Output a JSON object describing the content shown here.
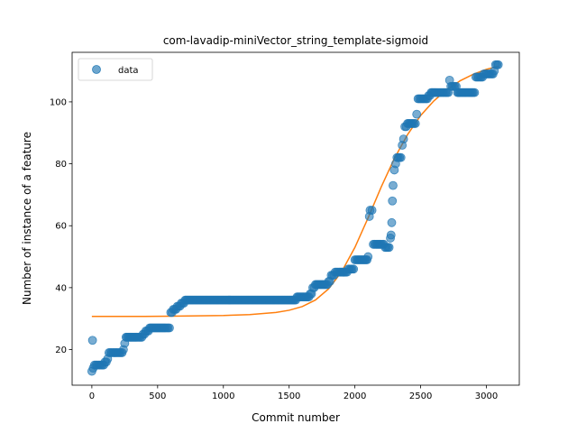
{
  "chart_data": {
    "type": "scatter",
    "title": "com-lavadip-miniVector_string_template-sigmoid",
    "xlabel": "Commit number",
    "ylabel": "Number of instance of a feature",
    "xlim": [
      -150,
      3250
    ],
    "ylim": [
      8.5,
      116
    ],
    "x_ticks": [
      0,
      500,
      1000,
      1500,
      2000,
      2500,
      3000
    ],
    "y_ticks": [
      20,
      40,
      60,
      80,
      100
    ],
    "grid": false,
    "legend": {
      "placement": "top-left",
      "entries": [
        "data"
      ]
    },
    "colors": {
      "data": "#1f77b4",
      "fit": "#ff7f0e"
    },
    "series": [
      {
        "name": "data",
        "type": "scatter",
        "points": [
          [
            0,
            13
          ],
          [
            5,
            23
          ],
          [
            10,
            14
          ],
          [
            20,
            15
          ],
          [
            40,
            15
          ],
          [
            60,
            15
          ],
          [
            80,
            15
          ],
          [
            100,
            16
          ],
          [
            120,
            17
          ],
          [
            130,
            19
          ],
          [
            160,
            19
          ],
          [
            190,
            19
          ],
          [
            220,
            19
          ],
          [
            240,
            20
          ],
          [
            250,
            22
          ],
          [
            260,
            24
          ],
          [
            300,
            24
          ],
          [
            340,
            24
          ],
          [
            370,
            24
          ],
          [
            390,
            25
          ],
          [
            410,
            26
          ],
          [
            440,
            27
          ],
          [
            480,
            27
          ],
          [
            520,
            27
          ],
          [
            560,
            27
          ],
          [
            590,
            27
          ],
          [
            600,
            32
          ],
          [
            620,
            33
          ],
          [
            650,
            34
          ],
          [
            680,
            35
          ],
          [
            710,
            36
          ],
          [
            750,
            36
          ],
          [
            800,
            36
          ],
          [
            850,
            36
          ],
          [
            900,
            36
          ],
          [
            950,
            36
          ],
          [
            1000,
            36
          ],
          [
            1050,
            36
          ],
          [
            1100,
            36
          ],
          [
            1150,
            36
          ],
          [
            1200,
            36
          ],
          [
            1250,
            36
          ],
          [
            1300,
            36
          ],
          [
            1350,
            36
          ],
          [
            1400,
            36
          ],
          [
            1450,
            36
          ],
          [
            1500,
            36
          ],
          [
            1540,
            36
          ],
          [
            1560,
            37
          ],
          [
            1600,
            37
          ],
          [
            1640,
            37
          ],
          [
            1660,
            38
          ],
          [
            1680,
            40
          ],
          [
            1700,
            41
          ],
          [
            1740,
            41
          ],
          [
            1780,
            41
          ],
          [
            1800,
            42
          ],
          [
            1820,
            44
          ],
          [
            1850,
            45
          ],
          [
            1880,
            45
          ],
          [
            1920,
            45
          ],
          [
            1950,
            46
          ],
          [
            1980,
            46
          ],
          [
            2000,
            49
          ],
          [
            2020,
            49
          ],
          [
            2060,
            49
          ],
          [
            2100,
            50
          ],
          [
            2110,
            63
          ],
          [
            2115,
            65
          ],
          [
            2130,
            65
          ],
          [
            2140,
            54
          ],
          [
            2160,
            54
          ],
          [
            2200,
            54
          ],
          [
            2230,
            53
          ],
          [
            2260,
            53
          ],
          [
            2270,
            56
          ],
          [
            2275,
            57
          ],
          [
            2280,
            61
          ],
          [
            2285,
            68
          ],
          [
            2290,
            73
          ],
          [
            2300,
            78
          ],
          [
            2310,
            80
          ],
          [
            2320,
            82
          ],
          [
            2340,
            82
          ],
          [
            2360,
            86
          ],
          [
            2370,
            88
          ],
          [
            2380,
            92
          ],
          [
            2400,
            93
          ],
          [
            2440,
            93
          ],
          [
            2460,
            93
          ],
          [
            2470,
            96
          ],
          [
            2480,
            101
          ],
          [
            2500,
            101
          ],
          [
            2520,
            101
          ],
          [
            2540,
            101
          ],
          [
            2560,
            102
          ],
          [
            2580,
            103
          ],
          [
            2620,
            103
          ],
          [
            2650,
            103
          ],
          [
            2680,
            103
          ],
          [
            2700,
            103
          ],
          [
            2720,
            107
          ],
          [
            2730,
            105
          ],
          [
            2760,
            105
          ],
          [
            2780,
            103
          ],
          [
            2820,
            103
          ],
          [
            2860,
            103
          ],
          [
            2900,
            103
          ],
          [
            2920,
            108
          ],
          [
            2950,
            108
          ],
          [
            2980,
            109
          ],
          [
            3000,
            109
          ],
          [
            3030,
            109
          ],
          [
            3060,
            110
          ],
          [
            3070,
            112
          ],
          [
            3090,
            112
          ]
        ]
      },
      {
        "name": "",
        "type": "line",
        "points": [
          [
            0,
            30.7
          ],
          [
            200,
            30.7
          ],
          [
            400,
            30.7
          ],
          [
            600,
            30.8
          ],
          [
            800,
            30.9
          ],
          [
            1000,
            31.0
          ],
          [
            1200,
            31.3
          ],
          [
            1400,
            32.0
          ],
          [
            1500,
            32.7
          ],
          [
            1600,
            33.9
          ],
          [
            1700,
            36.0
          ],
          [
            1800,
            39.6
          ],
          [
            1900,
            45.2
          ],
          [
            2000,
            53.0
          ],
          [
            2100,
            62.5
          ],
          [
            2200,
            72.5
          ],
          [
            2300,
            81.7
          ],
          [
            2400,
            89.4
          ],
          [
            2500,
            95.6
          ],
          [
            2600,
            100.3
          ],
          [
            2700,
            104.0
          ],
          [
            2800,
            106.8
          ],
          [
            2900,
            108.9
          ],
          [
            3000,
            110.5
          ],
          [
            3090,
            111.5
          ]
        ]
      }
    ]
  }
}
